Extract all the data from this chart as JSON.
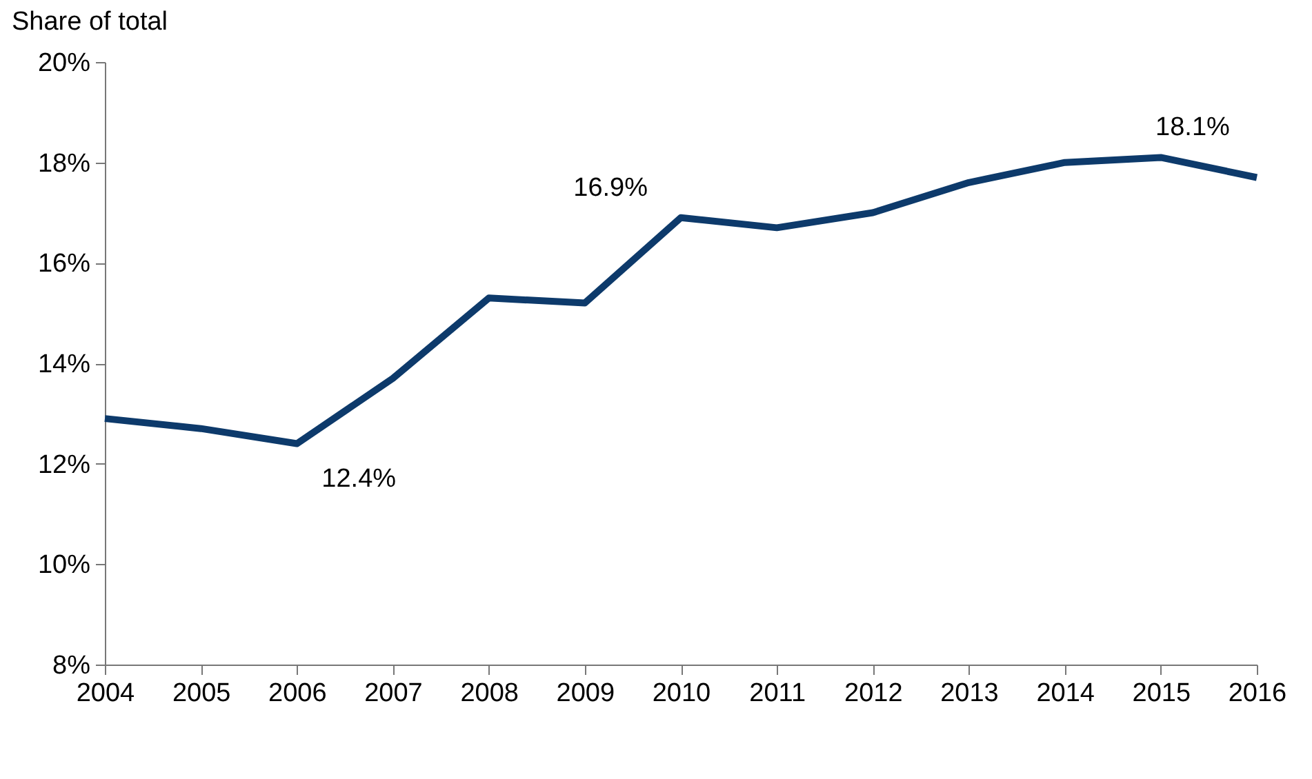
{
  "chart_data": {
    "type": "line",
    "ylabel": "Share of total",
    "x": [
      2004,
      2005,
      2006,
      2007,
      2008,
      2009,
      2010,
      2011,
      2012,
      2013,
      2014,
      2015,
      2016
    ],
    "xlim": [
      2004,
      2016
    ],
    "xticks": [
      2004,
      2005,
      2006,
      2007,
      2008,
      2009,
      2010,
      2011,
      2012,
      2013,
      2014,
      2015,
      2016
    ],
    "ylim": [
      8,
      20
    ],
    "yticks": [
      {
        "value": 8,
        "label": "8%"
      },
      {
        "value": 10,
        "label": "10%"
      },
      {
        "value": 12,
        "label": "12%"
      },
      {
        "value": 14,
        "label": "14%"
      },
      {
        "value": 16,
        "label": "16%"
      },
      {
        "value": 18,
        "label": "18%"
      },
      {
        "value": 20,
        "label": "20%"
      }
    ],
    "series": [
      {
        "color": "#0d3a6b",
        "values": [
          12.9,
          12.7,
          12.4,
          13.7,
          15.3,
          15.2,
          16.9,
          16.7,
          17.0,
          17.6,
          18.0,
          18.1,
          17.7
        ]
      }
    ],
    "annotations": [
      {
        "text": "12.4%",
        "x": 2006,
        "y": 12.4
      },
      {
        "text": "16.9%",
        "x": 2010,
        "y": 16.9
      },
      {
        "text": "18.1%",
        "x": 2015,
        "y": 18.1
      }
    ],
    "grid": false,
    "marker": "none",
    "line_style": "solid"
  }
}
